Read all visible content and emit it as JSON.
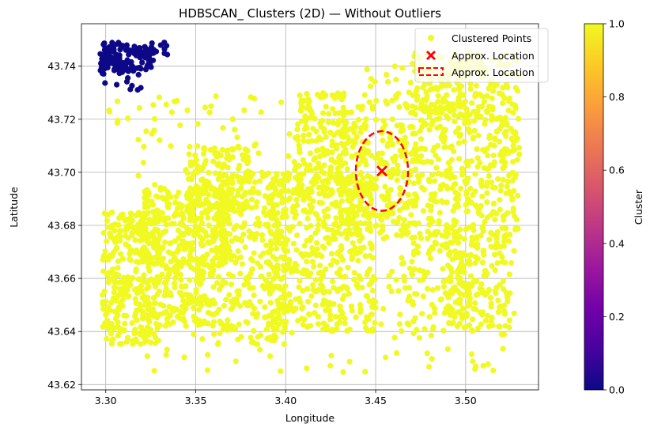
{
  "chart_data": {
    "type": "scatter",
    "title": "HDBSCAN_ Clusters (2D) — Without Outliers",
    "xlabel": "Longitude",
    "ylabel": "Latitude",
    "xlim": [
      3.2865,
      3.5405
    ],
    "ylim": [
      43.618,
      43.756
    ],
    "xticks": [
      3.3,
      3.35,
      3.4,
      3.45,
      3.5
    ],
    "xtick_labels": [
      "3.30",
      "3.35",
      "3.40",
      "3.45",
      "3.50"
    ],
    "yticks": [
      43.62,
      43.64,
      43.66,
      43.68,
      43.7,
      43.72,
      43.74
    ],
    "ytick_labels": [
      "43.62",
      "43.64",
      "43.66",
      "43.68",
      "43.70",
      "43.72",
      "43.74"
    ],
    "grid": true,
    "legend_position": "top-right",
    "legend": [
      {
        "label": "Clustered Points",
        "marker": "dot",
        "color": "#f0f921"
      },
      {
        "label": "Approx. Location",
        "marker": "x",
        "color": "#ff0000"
      },
      {
        "label": "Approx. Location",
        "marker": "dashed-ellipse",
        "color": "#ff0000"
      }
    ],
    "colorbar": {
      "label": "Cluster",
      "min": 0.0,
      "max": 1.0,
      "ticks": [
        0.0,
        0.2,
        0.4,
        0.6,
        0.8,
        1.0
      ],
      "tick_labels": [
        "0.0",
        "0.2",
        "0.4",
        "0.6",
        "0.8",
        "1.0"
      ],
      "colormap": "plasma",
      "stops": [
        "#0d0887",
        "#46039f",
        "#7201a8",
        "#9c179e",
        "#bd3786",
        "#d8576b",
        "#ed7953",
        "#fb9f3a",
        "#fdca26",
        "#f0f921"
      ]
    },
    "series": [
      {
        "cluster": 0,
        "color": "#0d0887",
        "regions": [
          {
            "x": [
              3.297,
              3.327
            ],
            "y": [
              43.738,
              43.749
            ],
            "n": 140
          },
          {
            "x": [
              3.297,
              3.322
            ],
            "y": [
              43.731,
              43.74
            ],
            "n": 18
          },
          {
            "x": [
              3.325,
              3.336
            ],
            "y": [
              43.744,
              43.749
            ],
            "n": 10
          }
        ]
      },
      {
        "cluster": 1,
        "color": "#f0f921",
        "regions": [
          {
            "x": [
              3.298,
              3.33
            ],
            "y": [
              43.635,
              43.685
            ],
            "n": 330
          },
          {
            "x": [
              3.32,
              3.37
            ],
            "y": [
              43.665,
              43.695
            ],
            "n": 300
          },
          {
            "x": [
              3.33,
              3.36
            ],
            "y": [
              43.642,
              43.668
            ],
            "n": 150
          },
          {
            "x": [
              3.345,
              3.38
            ],
            "y": [
              43.685,
              43.71
            ],
            "n": 150
          },
          {
            "x": [
              3.36,
              3.4
            ],
            "y": [
              43.635,
              43.7
            ],
            "n": 320
          },
          {
            "x": [
              3.39,
              3.45
            ],
            "y": [
              43.64,
              43.7
            ],
            "n": 420
          },
          {
            "x": [
              3.405,
              3.435
            ],
            "y": [
              43.69,
              43.73
            ],
            "n": 180
          },
          {
            "x": [
              3.43,
              3.47
            ],
            "y": [
              43.675,
              43.72
            ],
            "n": 260
          },
          {
            "x": [
              3.47,
              3.53
            ],
            "y": [
              43.67,
              43.745
            ],
            "n": 560
          },
          {
            "x": [
              3.44,
              3.5
            ],
            "y": [
              43.72,
              43.74
            ],
            "n": 60
          },
          {
            "x": [
              3.49,
              3.525
            ],
            "y": [
              43.64,
              43.67
            ],
            "n": 140
          },
          {
            "x": [
              3.46,
              3.5
            ],
            "y": [
              43.64,
              43.67
            ],
            "n": 80
          },
          {
            "x": [
              3.3,
              3.53
            ],
            "y": [
              43.624,
              43.73
            ],
            "n": 260
          }
        ]
      }
    ],
    "annotations": [
      {
        "type": "x-marker",
        "label": "Approx. Location",
        "x": 3.4535,
        "y": 43.7005,
        "color": "#ff0000"
      },
      {
        "type": "dashed-ellipse",
        "label": "Approx. Location",
        "cx": 3.4535,
        "cy": 43.7005,
        "rx": 0.0145,
        "ry": 0.015,
        "color": "#ff0000"
      }
    ]
  }
}
